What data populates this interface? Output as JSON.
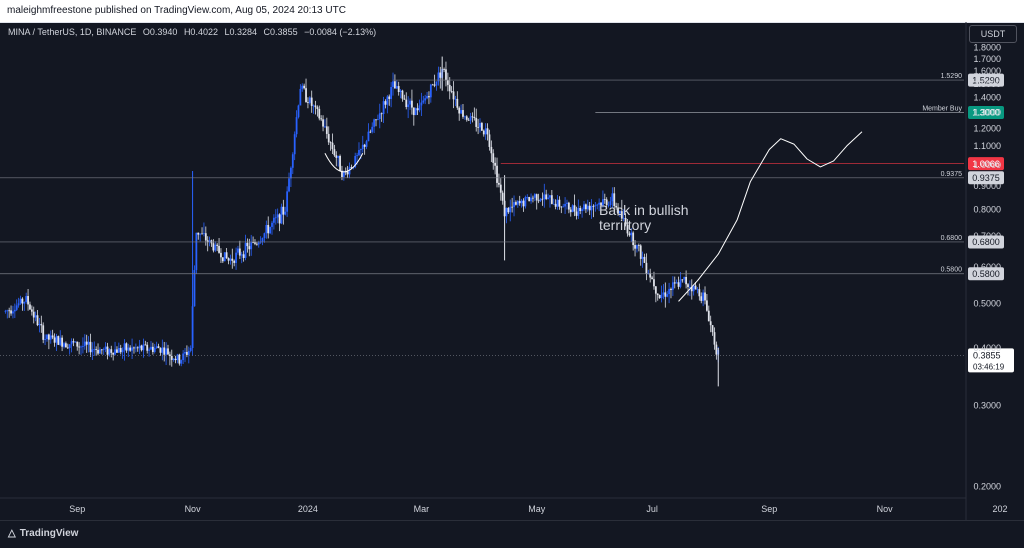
{
  "header": {
    "published_text": "maleighmfreestone published on TradingView.com, Aug 05, 2024 20:13 UTC"
  },
  "symbol": {
    "name": "MINA / TetherUS, 1D, BINANCE",
    "open": "O0.3940",
    "high": "H0.4022",
    "low": "L0.3284",
    "close": "C0.3855",
    "change": "−0.0084 (−2.13%)"
  },
  "currency_button": "USDT",
  "footer": {
    "brand": "TradingView"
  },
  "colors": {
    "background": "#131722",
    "up_candle": "#2962ff",
    "down_candle": "#e0e3eb",
    "red_level": "#f23645",
    "member_buy": "#089981"
  },
  "chart_data": {
    "type": "candlestick",
    "y_axis": {
      "scale": "log",
      "ticks": [
        "1.8000",
        "1.7000",
        "1.6000",
        "1.5000",
        "1.4000",
        "1.3000",
        "1.2000",
        "1.1000",
        "1.0000",
        "0.9000",
        "0.8000",
        "0.7000",
        "0.6000",
        "0.5000",
        "0.4000",
        "0.3000",
        "0.2000"
      ],
      "range": [
        0.185,
        1.85
      ]
    },
    "x_axis": {
      "labels": [
        "Sep",
        "Nov",
        "2024",
        "Mar",
        "May",
        "Jul",
        "Sep",
        "Nov",
        "202"
      ],
      "range_months": [
        "2023-07",
        "2025-01"
      ]
    },
    "price_path": [
      {
        "m": "2023-07-25",
        "p": 0.48
      },
      {
        "m": "2023-08-05",
        "p": 0.51
      },
      {
        "m": "2023-08-15",
        "p": 0.42
      },
      {
        "m": "2023-09-15",
        "p": 0.395
      },
      {
        "m": "2023-10-15",
        "p": 0.4
      },
      {
        "m": "2023-10-25",
        "p": 0.375
      },
      {
        "m": "2023-10-31",
        "p": 0.4
      },
      {
        "m": "2023-11-03",
        "p": 0.72
      },
      {
        "m": "2023-11-20",
        "p": 0.62
      },
      {
        "m": "2023-12-05",
        "p": 0.68
      },
      {
        "m": "2023-12-20",
        "p": 0.8
      },
      {
        "m": "2023-12-28",
        "p": 1.48
      },
      {
        "m": "2024-01-08",
        "p": 1.25
      },
      {
        "m": "2024-01-20",
        "p": 0.95
      },
      {
        "m": "2024-01-28",
        "p": 1.05
      },
      {
        "m": "2024-02-15",
        "p": 1.48
      },
      {
        "m": "2024-02-28",
        "p": 1.3
      },
      {
        "m": "2024-03-12",
        "p": 1.62
      },
      {
        "m": "2024-03-22",
        "p": 1.3
      },
      {
        "m": "2024-04-05",
        "p": 1.18
      },
      {
        "m": "2024-04-14",
        "p": 0.79
      },
      {
        "m": "2024-05-01",
        "p": 0.86
      },
      {
        "m": "2024-05-20",
        "p": 0.8
      },
      {
        "m": "2024-06-10",
        "p": 0.84
      },
      {
        "m": "2024-06-25",
        "p": 0.64
      },
      {
        "m": "2024-07-05",
        "p": 0.52
      },
      {
        "m": "2024-07-18",
        "p": 0.56
      },
      {
        "m": "2024-07-28",
        "p": 0.52
      },
      {
        "m": "2024-08-05",
        "p": 0.3855
      }
    ],
    "horizontal_levels": [
      {
        "price": 1.529,
        "label": "1.5290",
        "tag": "1.5290",
        "style": "light"
      },
      {
        "price": 1.3,
        "label": "Member Buy",
        "tag": "1.3000",
        "style": "green"
      },
      {
        "price": 1.0066,
        "label": "",
        "tag": "1.0066",
        "style": "red"
      },
      {
        "price": 0.9375,
        "label": "0.9375",
        "tag": "0.9375",
        "style": "light"
      },
      {
        "price": 0.68,
        "label": "0.6800",
        "tag": "0.6800",
        "style": "light"
      },
      {
        "price": 0.58,
        "label": "0.5800",
        "tag": "0.5800",
        "style": "light"
      }
    ],
    "current_price": {
      "tag": "0.3855",
      "countdown": "03:46:19"
    },
    "annotation": {
      "line1": "Back in bullish",
      "line2": "terrirtory"
    }
  }
}
